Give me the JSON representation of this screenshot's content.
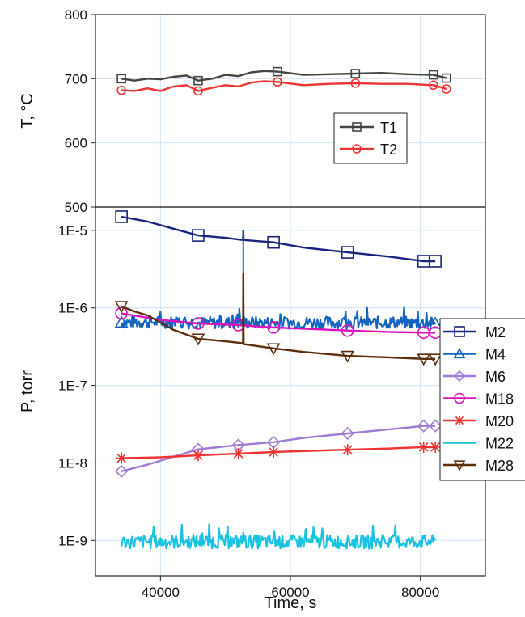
{
  "chart_data": [
    {
      "type": "line",
      "ylabel": "T, °C",
      "ylim": [
        500,
        800
      ],
      "y_ticks": [
        "500",
        "600",
        "700",
        "800"
      ],
      "x_ticks": [
        "40000",
        "60000",
        "80000"
      ],
      "xlim": [
        30000,
        90000
      ],
      "grid": true,
      "legend_position": "middle-right",
      "series": [
        {
          "name": "T1",
          "color": "#444444",
          "marker": "square",
          "x": [
            34000,
            36000,
            38000,
            40000,
            42000,
            44000,
            45800,
            48000,
            50000,
            52000,
            54000,
            56000,
            58000,
            62000,
            66000,
            70000,
            74000,
            78000,
            82000,
            84000
          ],
          "y": [
            700,
            697,
            700,
            699,
            703,
            705,
            697,
            700,
            706,
            704,
            710,
            712,
            711,
            706,
            707,
            708,
            709,
            707,
            706,
            701
          ]
        },
        {
          "name": "T2",
          "color": "#ee3333",
          "marker": "circle",
          "x": [
            34000,
            36000,
            38000,
            40000,
            42000,
            44000,
            45800,
            48000,
            50000,
            52000,
            54000,
            56000,
            58000,
            62000,
            66000,
            70000,
            74000,
            78000,
            82000,
            84000
          ],
          "y": [
            682,
            681,
            685,
            681,
            688,
            690,
            681,
            686,
            690,
            688,
            694,
            696,
            695,
            690,
            692,
            693,
            692,
            692,
            690,
            684
          ]
        }
      ]
    },
    {
      "type": "line",
      "xlabel": "Time, s",
      "ylabel": "P, torr",
      "yscale": "log",
      "ylim": [
        3.5e-10,
        2e-05
      ],
      "xlim": [
        30000,
        90000
      ],
      "x_ticks": [
        "40000",
        "60000",
        "80000"
      ],
      "y_ticks": [
        "1E-9",
        "1E-8",
        "1E-7",
        "1E-6",
        "1E-5"
      ],
      "grid": true,
      "legend_position": "right",
      "series": [
        {
          "name": "M2",
          "color": "#1a237e",
          "marker": "square",
          "x": [
            34000,
            38000,
            42000,
            45800,
            50000,
            52700,
            52750,
            52800,
            57400,
            62000,
            68800,
            75000,
            80500,
            82300
          ],
          "y": [
            1.5e-05,
            1.3e-05,
            1.05e-05,
            8.6e-06,
            8e-06,
            7.5e-06,
            1e-05,
            7.5e-06,
            7e-06,
            6e-06,
            5.2e-06,
            4.6e-06,
            4e-06,
            4e-06
          ]
        },
        {
          "name": "M4",
          "color": "#1565c0",
          "marker": "triangle",
          "x": [
            34000,
            40000,
            46000,
            52000,
            58000,
            64000,
            70000,
            76000,
            82300
          ],
          "y": [
            6.5e-07,
            6.6e-07,
            6.4e-07,
            6.5e-07,
            6.4e-07,
            6.5e-07,
            6.4e-07,
            6.5e-07,
            6.3e-07
          ]
        },
        {
          "name": "M6",
          "color": "#a07cd6",
          "marker": "diamond",
          "x": [
            34000,
            38000,
            42000,
            45800,
            52000,
            57400,
            62000,
            68800,
            75000,
            80500,
            82300
          ],
          "y": [
            7.8e-09,
            9.5e-09,
            1.2e-08,
            1.5e-08,
            1.7e-08,
            1.85e-08,
            2.1e-08,
            2.4e-08,
            2.7e-08,
            3e-08,
            3e-08
          ]
        },
        {
          "name": "M18",
          "color": "#dd11bb",
          "marker": "circle",
          "x": [
            34000,
            40000,
            45800,
            52000,
            57400,
            62000,
            68800,
            75000,
            80500,
            82300
          ],
          "y": [
            8.5e-07,
            7e-07,
            6.3e-07,
            6e-07,
            5.6e-07,
            5.4e-07,
            5.1e-07,
            4.9e-07,
            4.8e-07,
            4.8e-07
          ]
        },
        {
          "name": "M20",
          "color": "#ee3333",
          "marker": "star",
          "x": [
            34000,
            40000,
            45800,
            52000,
            57400,
            62000,
            68800,
            75000,
            80500,
            82300
          ],
          "y": [
            1.15e-08,
            1.18e-08,
            1.25e-08,
            1.32e-08,
            1.38e-08,
            1.42e-08,
            1.48e-08,
            1.53e-08,
            1.6e-08,
            1.6e-08
          ]
        },
        {
          "name": "M22",
          "color": "#19c2e0",
          "marker": "none",
          "x": [
            34000,
            40000,
            46000,
            52000,
            58000,
            64000,
            70000,
            76000,
            82300
          ],
          "y": [
            9.6e-10,
            9.6e-10,
            9.7e-10,
            9.6e-10,
            9.6e-10,
            9.6e-10,
            9.6e-10,
            9.6e-10,
            9.6e-10
          ]
        },
        {
          "name": "M28",
          "color": "#5d2e0c",
          "marker": "down-triangle",
          "x": [
            34000,
            36000,
            38000,
            40000,
            42000,
            45800,
            50000,
            52700,
            52750,
            52800,
            57400,
            62000,
            68800,
            75000,
            80500,
            82300
          ],
          "y": [
            1.05e-06,
            9e-07,
            8e-07,
            6.5e-07,
            5.2e-07,
            4e-07,
            3.7e-07,
            3.5e-07,
            2.8e-06,
            3.4e-07,
            3e-07,
            2.7e-07,
            2.4e-07,
            2.3e-07,
            2.2e-07,
            2.2e-07
          ]
        }
      ]
    }
  ]
}
